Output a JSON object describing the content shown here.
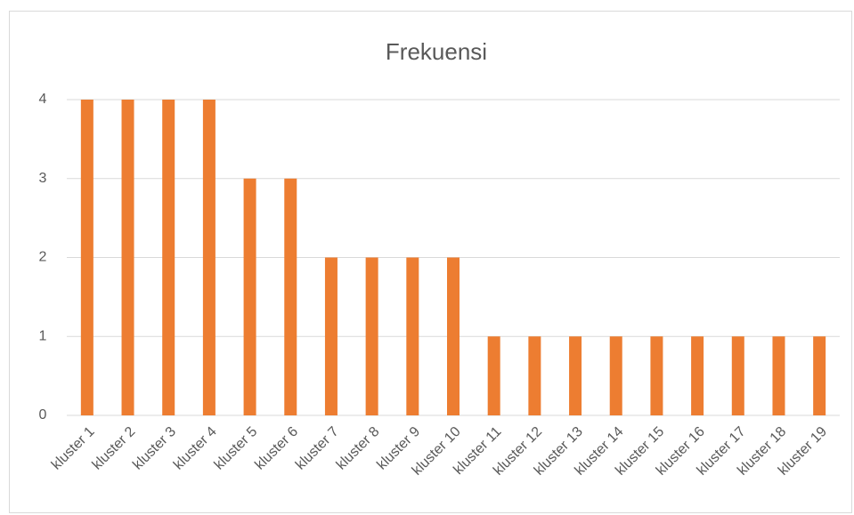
{
  "chart_data": {
    "type": "bar",
    "title": "Frekuensi",
    "categories": [
      "kluster 1",
      "kluster 2",
      "kluster 3",
      "kluster 4",
      "kluster 5",
      "kluster 6",
      "kluster 7",
      "kluster 8",
      "kluster 9",
      "kluster 10",
      "kluster 11",
      "kluster 12",
      "kluster 13",
      "kluster 14",
      "kluster 15",
      "kluster 16",
      "kluster 17",
      "kluster 18",
      "kluster 19"
    ],
    "values": [
      4,
      4,
      4,
      4,
      3,
      3,
      2,
      2,
      2,
      2,
      1,
      1,
      1,
      1,
      1,
      1,
      1,
      1,
      1
    ],
    "color": "#ed7d31",
    "ylim": [
      0,
      4
    ],
    "yticks": [
      0,
      1,
      2,
      3,
      4
    ],
    "grid": true
  }
}
